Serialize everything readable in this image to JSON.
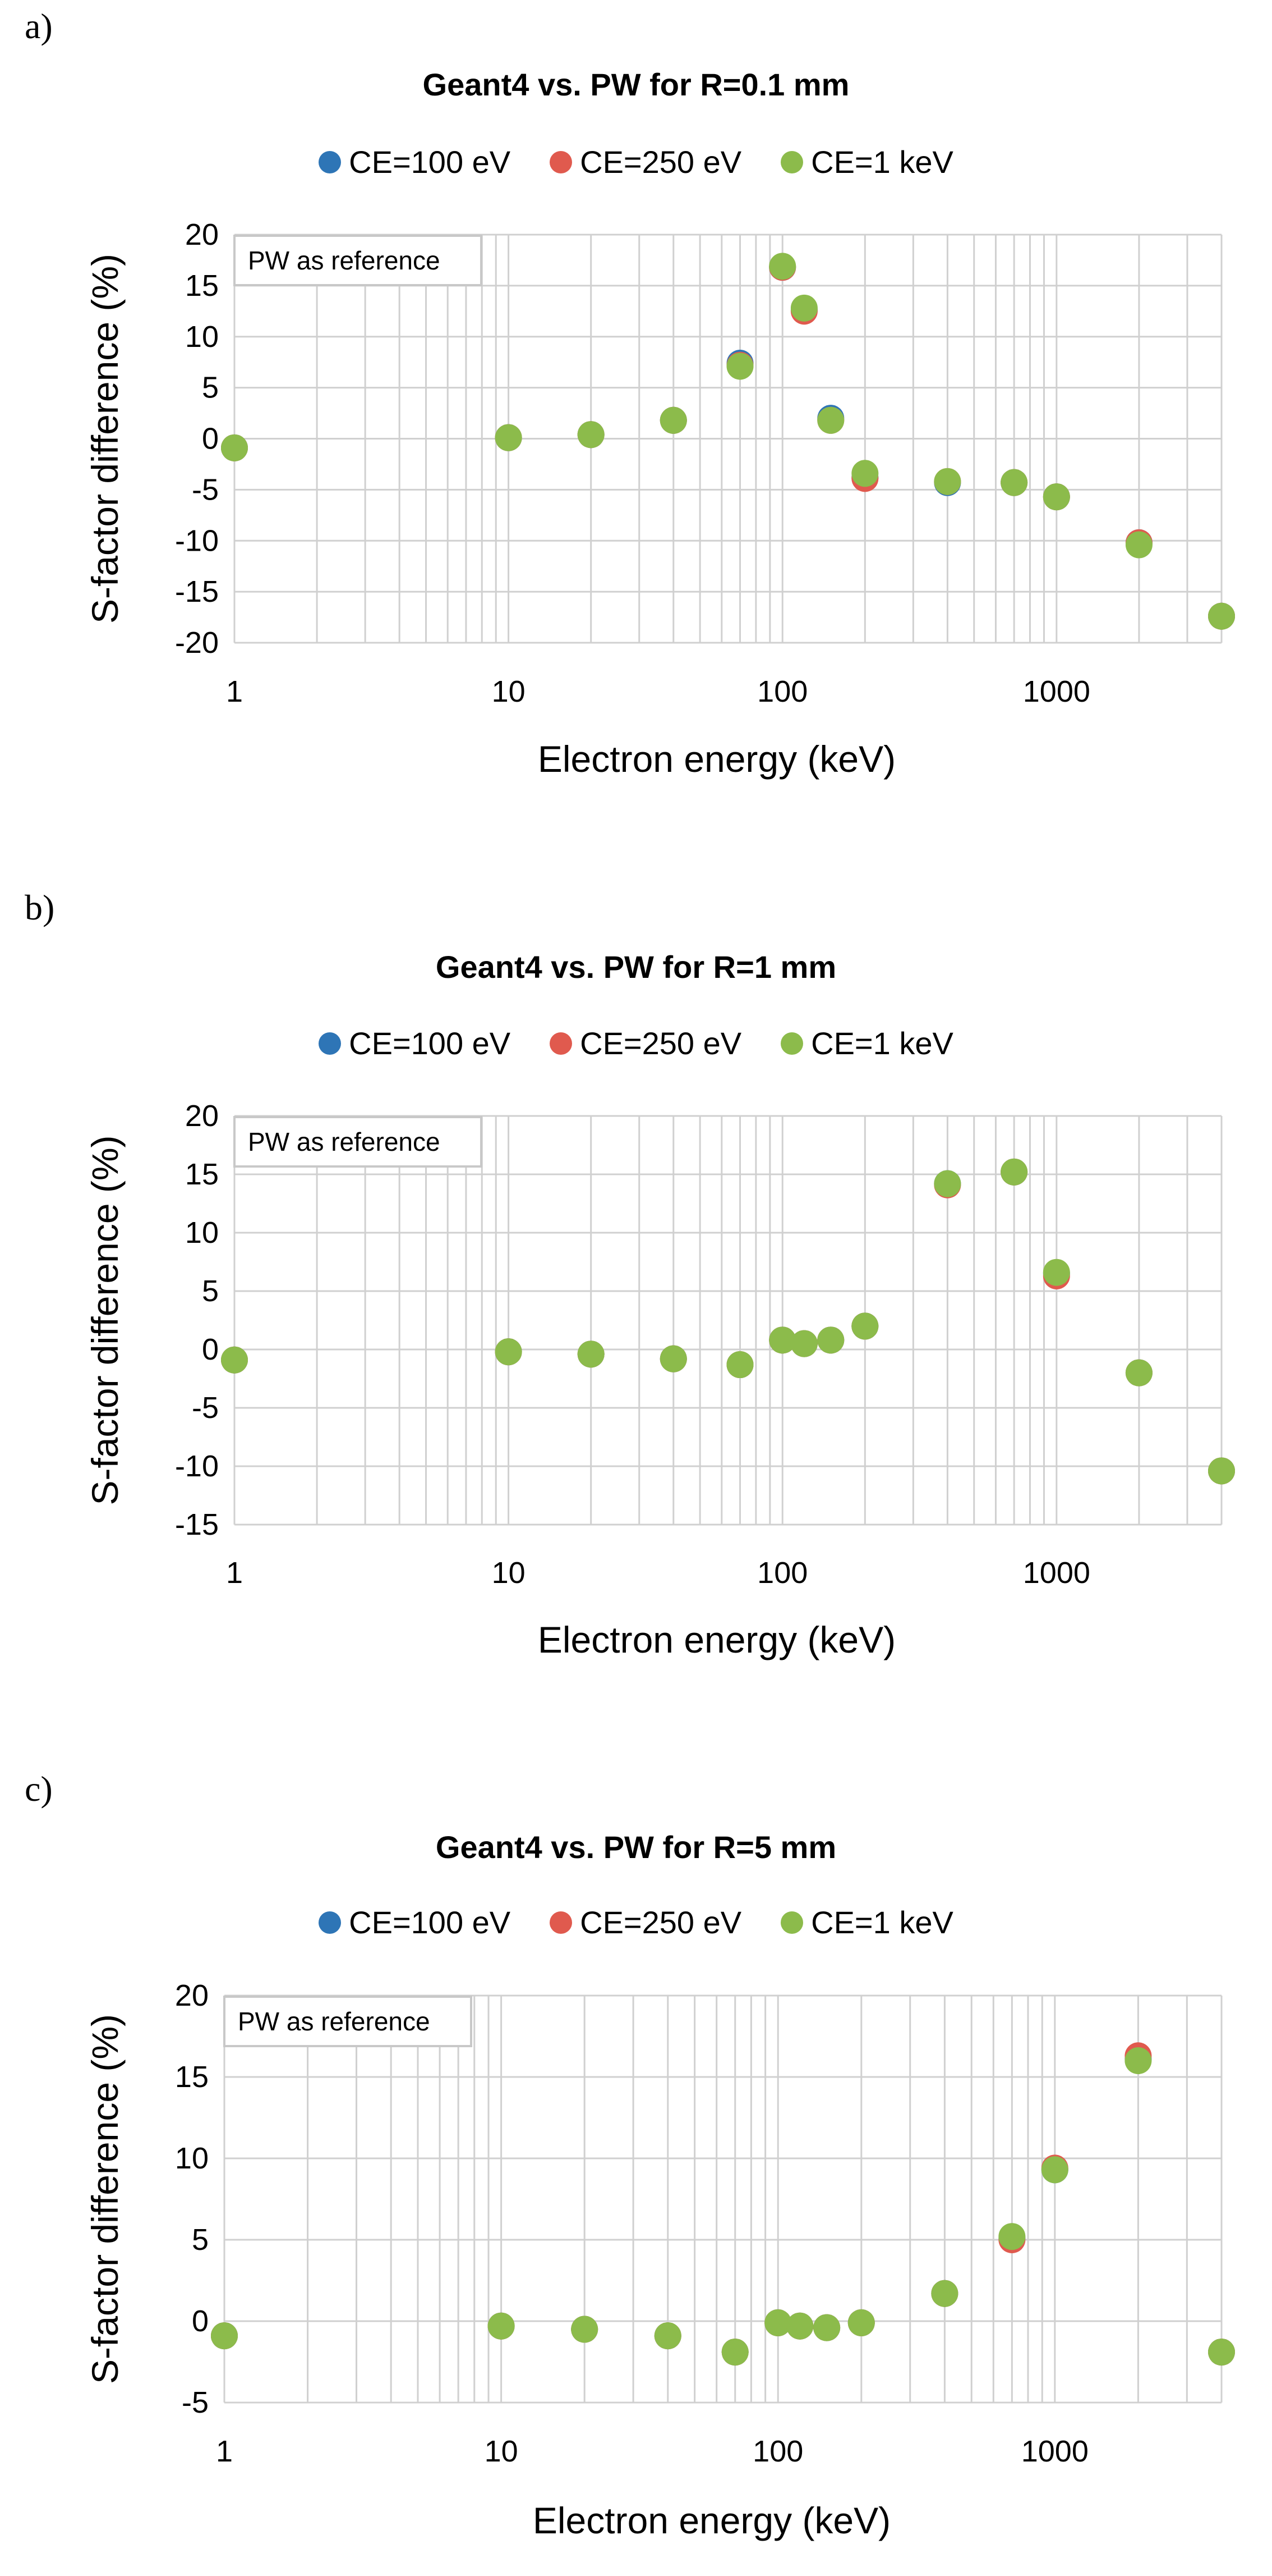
{
  "panels": [
    {
      "letter": "a)"
    },
    {
      "letter": "b)"
    },
    {
      "letter": "c)"
    }
  ],
  "colors": {
    "ce100": "#2e75b6",
    "ce250": "#e05a4e",
    "ce1k": "#8cbb4b",
    "grid": "#d0d0d0"
  },
  "chart_data": [
    {
      "type": "scatter",
      "title": "Geant4 vs. PW for R=0.1 mm",
      "xlabel": "Electron energy (keV)",
      "ylabel": "S-factor difference (%)",
      "xscale": "log",
      "xlim": [
        1,
        4000
      ],
      "ylim": [
        -20,
        20
      ],
      "yticks": [
        "20",
        "15",
        "10",
        "5",
        "0",
        "-5",
        "-10",
        "-15",
        "-20"
      ],
      "ytick_values": [
        20,
        15,
        10,
        5,
        0,
        -5,
        -10,
        -15,
        -20
      ],
      "xticks": [
        "1",
        "10",
        "100",
        "1000"
      ],
      "xtick_values": [
        1,
        10,
        100,
        1000
      ],
      "annotation": "PW as reference",
      "x": [
        1,
        10,
        20,
        40,
        70,
        100,
        120,
        150,
        200,
        400,
        700,
        1000,
        2000,
        4000
      ],
      "series": [
        {
          "name": "CE=100 eV",
          "color_key": "ce100",
          "values": [
            -0.9,
            0.1,
            0.4,
            1.8,
            7.4,
            16.8,
            12.6,
            2.0,
            -3.8,
            -4.3,
            -4.3,
            -5.7,
            -10.2,
            -17.4
          ]
        },
        {
          "name": "CE=250 eV",
          "color_key": "ce250",
          "values": [
            -0.9,
            0.1,
            0.4,
            1.8,
            7.2,
            16.8,
            12.5,
            1.8,
            -3.9,
            -4.2,
            -4.3,
            -5.7,
            -10.2,
            -17.4
          ]
        },
        {
          "name": "CE=1 keV",
          "color_key": "ce1k",
          "values": [
            -0.9,
            0.1,
            0.4,
            1.8,
            7.1,
            16.9,
            12.8,
            1.8,
            -3.4,
            -4.2,
            -4.3,
            -5.7,
            -10.4,
            -17.4
          ]
        }
      ]
    },
    {
      "type": "scatter",
      "title": "Geant4 vs. PW for R=1 mm",
      "xlabel": "Electron energy (keV)",
      "ylabel": "S-factor difference (%)",
      "xscale": "log",
      "xlim": [
        1,
        4000
      ],
      "ylim": [
        -15,
        20
      ],
      "yticks": [
        "20",
        "15",
        "10",
        "5",
        "0",
        "-5",
        "-10",
        "-15"
      ],
      "ytick_values": [
        20,
        15,
        10,
        5,
        0,
        -5,
        -10,
        -15
      ],
      "xticks": [
        "1",
        "10",
        "100",
        "1000"
      ],
      "xtick_values": [
        1,
        10,
        100,
        1000
      ],
      "annotation": "PW as reference",
      "x": [
        1,
        10,
        20,
        40,
        70,
        100,
        120,
        150,
        200,
        400,
        700,
        1000,
        2000,
        4000
      ],
      "series": [
        {
          "name": "CE=100 eV",
          "color_key": "ce100",
          "values": [
            -0.9,
            -0.2,
            -0.4,
            -0.8,
            -1.3,
            0.8,
            0.5,
            0.8,
            2.0,
            14.2,
            15.2,
            6.5,
            -2.0,
            -10.4
          ]
        },
        {
          "name": "CE=250 eV",
          "color_key": "ce250",
          "values": [
            -0.9,
            -0.2,
            -0.4,
            -0.8,
            -1.3,
            0.8,
            0.5,
            0.8,
            2.0,
            14.1,
            15.2,
            6.3,
            -2.0,
            -10.4
          ]
        },
        {
          "name": "CE=1 keV",
          "color_key": "ce1k",
          "values": [
            -0.9,
            -0.2,
            -0.4,
            -0.8,
            -1.3,
            0.8,
            0.5,
            0.8,
            2.0,
            14.2,
            15.2,
            6.6,
            -2.0,
            -10.4
          ]
        }
      ]
    },
    {
      "type": "scatter",
      "title": "Geant4 vs. PW for R=5 mm",
      "xlabel": "Electron energy (keV)",
      "ylabel": "S-factor difference (%)",
      "xscale": "log",
      "xlim": [
        1,
        4000
      ],
      "ylim": [
        -5,
        20
      ],
      "yticks": [
        "20",
        "15",
        "10",
        "5",
        "0",
        "-5"
      ],
      "ytick_values": [
        20,
        15,
        10,
        5,
        0,
        -5
      ],
      "xticks": [
        "1",
        "10",
        "100",
        "1000"
      ],
      "xtick_values": [
        1,
        10,
        100,
        1000
      ],
      "annotation": "PW as reference",
      "x": [
        1,
        10,
        20,
        40,
        70,
        100,
        120,
        150,
        200,
        400,
        700,
        1000,
        2000,
        4000
      ],
      "series": [
        {
          "name": "CE=100 eV",
          "color_key": "ce100",
          "values": [
            -0.9,
            -0.3,
            -0.5,
            -0.9,
            -1.9,
            -0.1,
            -0.3,
            -0.4,
            -0.1,
            1.7,
            5.1,
            9.3,
            16.1,
            -1.9
          ]
        },
        {
          "name": "CE=250 eV",
          "color_key": "ce250",
          "values": [
            -0.9,
            -0.3,
            -0.5,
            -0.9,
            -1.9,
            -0.1,
            -0.3,
            -0.4,
            -0.1,
            1.7,
            5.0,
            9.4,
            16.3,
            -1.9
          ]
        },
        {
          "name": "CE=1 keV",
          "color_key": "ce1k",
          "values": [
            -0.9,
            -0.3,
            -0.5,
            -0.9,
            -1.9,
            -0.1,
            -0.3,
            -0.4,
            -0.1,
            1.7,
            5.2,
            9.3,
            16.0,
            -1.9
          ]
        }
      ]
    }
  ]
}
